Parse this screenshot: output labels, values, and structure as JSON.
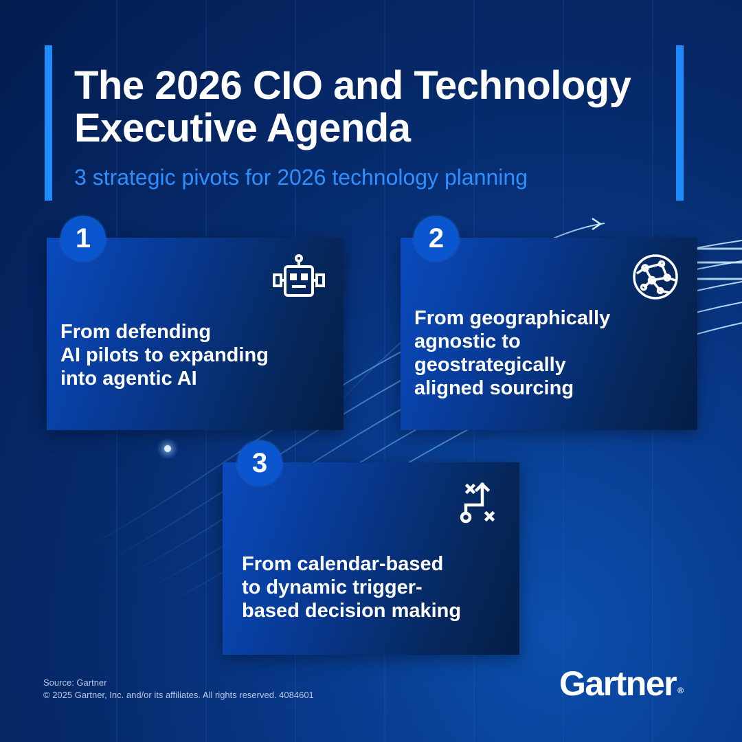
{
  "header": {
    "title_line1": "The 2026 CIO and Technology",
    "title_line2": "Executive Agenda",
    "subtitle": "3 strategic pivots for 2026 technology planning"
  },
  "cards": [
    {
      "number": "1",
      "icon": "robot-icon",
      "lines": [
        "From defending",
        "AI pilots to expanding",
        "into agentic AI"
      ]
    },
    {
      "number": "2",
      "icon": "globe-network-icon",
      "lines": [
        "From geographically",
        "agnostic to",
        "geostrategically",
        "aligned sourcing"
      ]
    },
    {
      "number": "3",
      "icon": "strategy-play-icon",
      "lines": [
        "From calendar-based",
        "to dynamic trigger-",
        "based decision making"
      ]
    }
  ],
  "footer": {
    "source": "Source: Gartner",
    "copyright": "© 2025 Gartner, Inc. and/or its affiliates. All rights reserved. 4084601"
  },
  "logo": {
    "text": "Gartner",
    "mark": "®"
  },
  "colors": {
    "accent": "#1e8bff",
    "subtitle": "#2f8fff",
    "badge": "#0a56cf",
    "background": "#062a6b"
  }
}
